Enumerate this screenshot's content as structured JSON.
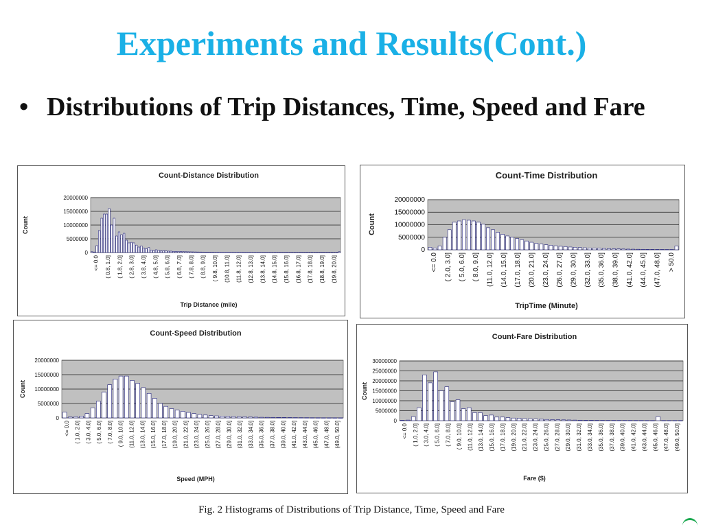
{
  "slide": {
    "title": "Experiments and Results(Cont.)",
    "bullet_symbol": "•",
    "bullet": "Distributions of Trip Distances, Time, Speed and Fare",
    "caption": "Fig. 2 Histograms of Distributions of Trip Distance, Time, Speed and Fare"
  },
  "colors": {
    "title": "#1ab0e6",
    "plot_bg": "#c0c0c0",
    "bar_fill": "#ffffff",
    "bar_stroke": "#1f1f7a",
    "accent_mark": "#1aa84f"
  },
  "chart_data": [
    {
      "type": "bar",
      "title": "Count-Distance Distribution",
      "xlabel": "Trip Distance (mile)",
      "ylabel": "Count",
      "ylim": [
        0,
        20000000
      ],
      "yticks": [
        "0",
        "5000000",
        "10000000",
        "15000000",
        "20000000"
      ],
      "tick_labels": [
        "<= 0.0",
        "( 0.8, 1.0]",
        "( 1.8, 2.0]",
        "( 2.8, 3.0]",
        "( 3.8, 4.0]",
        "( 4.8, 5.0]",
        "( 5.8, 6.0]",
        "( 6.8, 7.0]",
        "( 7.8, 8.0]",
        "( 8.8, 9.0]",
        "( 9.8, 10.0]",
        "(10.8, 11.0]",
        "(11.8, 12.0]",
        "(12.8, 13.0]",
        "(13.8, 14.0]",
        "(14.8, 15.0]",
        "(15.8, 16.0]",
        "(16.8, 17.0]",
        "(17.8, 18.0]",
        "(18.8, 19.0]",
        "(19.8, 20.0]"
      ],
      "values": [
        300000,
        200000,
        2500000,
        8000000,
        12500000,
        14000000,
        14000000,
        16000000,
        10000000,
        12500000,
        6000000,
        7500000,
        6500000,
        7000000,
        4500000,
        3500000,
        3700000,
        3500000,
        2700000,
        2000000,
        2400000,
        1600000,
        1400000,
        1800000,
        900000,
        700000,
        1000000,
        800000,
        600000,
        650000,
        600000,
        500000,
        500000,
        400000,
        400000,
        380000,
        360000,
        320000,
        300000,
        280000,
        260000,
        240000,
        220000,
        200000,
        190000,
        180000,
        170000,
        160000,
        150000,
        140000,
        130000,
        120000,
        110000,
        100000,
        95000,
        90000,
        85000,
        80000,
        75000,
        70000,
        65000,
        60000,
        55000,
        52000,
        50000,
        48000,
        45000,
        42000,
        40000,
        38000,
        36000,
        34000,
        32000,
        30000,
        28000,
        26000,
        25000,
        24000,
        23000,
        22000,
        21000,
        20000,
        19000,
        18000,
        17000,
        16000,
        15000,
        14000,
        13000,
        12000,
        11000,
        10000,
        9500,
        9000,
        8500,
        8000,
        7500,
        7000,
        6500,
        6000,
        300000
      ]
    },
    {
      "type": "bar",
      "title": "Count-Time Distribution",
      "xlabel": "TripTime (Minute)",
      "ylabel": "Count",
      "ylim": [
        0,
        20000000
      ],
      "yticks": [
        "0",
        "5000000",
        "10000000",
        "15000000",
        "20000000"
      ],
      "tick_labels": [
        "<= 0.0",
        "( 2.0, 3.0]",
        "( 5.0, 6.0]",
        "( 8.0, 9.0]",
        "(11.0, 12.0]",
        "(14.0, 15.0]",
        "(17.0, 18.0]",
        "(20.0, 21.0]",
        "(23.0, 24.0]",
        "(26.0, 27.0]",
        "(29.0, 30.0]",
        "(32.0, 33.0]",
        "(35.0, 36.0]",
        "(38.0, 39.0]",
        "(41.0, 42.0]",
        "(44.0, 45.0]",
        "(47.0, 48.0]",
        "> 50.0"
      ],
      "values": [
        1000000,
        700000,
        1500000,
        5000000,
        8000000,
        11000000,
        11500000,
        12000000,
        11800000,
        11500000,
        11000000,
        10200000,
        8800000,
        8000000,
        7000000,
        6200000,
        5500000,
        5000000,
        4500000,
        4000000,
        3500000,
        3000000,
        2600000,
        2300000,
        2000000,
        1800000,
        1600000,
        1400000,
        1300000,
        1100000,
        1000000,
        900000,
        800000,
        700000,
        650000,
        600000,
        520000,
        460000,
        400000,
        360000,
        320000,
        280000,
        250000,
        220000,
        200000,
        180000,
        160000,
        150000,
        140000,
        130000,
        120000,
        1500000
      ]
    },
    {
      "type": "bar",
      "title": "Count-Speed Distribution",
      "xlabel": "Speed (MPH)",
      "ylabel": "Count",
      "ylim": [
        0,
        20000000
      ],
      "yticks": [
        "0",
        "5000000",
        "10000000",
        "15000000",
        "20000000"
      ],
      "tick_labels": [
        "<= 0.0",
        "( 1.0, 2.0]",
        "( 3.0, 4.0]",
        "( 5.0, 6.0]",
        "( 7.0, 8.0]",
        "( 9.0, 10.0]",
        "(11.0, 12.0]",
        "(13.0, 14.0]",
        "(15.0, 16.0]",
        "(17.0, 18.0]",
        "(19.0, 20.0]",
        "(21.0, 22.0]",
        "(23.0, 24.0]",
        "(25.0, 26.0]",
        "(27.0, 28.0]",
        "(29.0, 30.0]",
        "(31.0, 32.0]",
        "(33.0, 34.0]",
        "(35.0, 36.0]",
        "(37.0, 38.0]",
        "(39.0, 40.0]",
        "(41.0, 42.0]",
        "(43.0, 44.0]",
        "(45.0, 46.0]",
        "(47.0, 48.0]",
        "(49.0, 50.0]"
      ],
      "values": [
        2000000,
        300000,
        400000,
        600000,
        1500000,
        3500000,
        5800000,
        9000000,
        11500000,
        13500000,
        14500000,
        14500000,
        13000000,
        12000000,
        10500000,
        8500000,
        6800000,
        5000000,
        4000000,
        3200000,
        2700000,
        2300000,
        1900000,
        1500000,
        1200000,
        1000000,
        800000,
        700000,
        600000,
        500000,
        450000,
        400000,
        350000,
        300000,
        260000,
        220000,
        200000,
        180000,
        160000,
        140000,
        120000,
        100000,
        90000,
        80000,
        70000,
        60000,
        55000,
        50000,
        45000,
        40000
      ]
    },
    {
      "type": "bar",
      "title": "Count-Fare Distribution",
      "xlabel": "Fare ($)",
      "ylabel": "Count",
      "ylim": [
        0,
        30000000
      ],
      "yticks": [
        "0",
        "5000000",
        "10000000",
        "15000000",
        "20000000",
        "25000000",
        "30000000"
      ],
      "tick_labels": [
        "<= 0.0",
        "( 1.0, 2.0]",
        "( 3.0, 4.0]",
        "( 5.0, 6.0]",
        "( 7.0, 8.0]",
        "( 9.0, 10.0]",
        "(11.0, 12.0]",
        "(13.0, 14.0]",
        "(15.0, 16.0]",
        "(17.0, 18.0]",
        "(19.0, 20.0]",
        "(21.0, 22.0]",
        "(23.0, 24.0]",
        "(25.0, 26.0]",
        "(27.0, 28.0]",
        "(29.0, 30.0]",
        "(31.0, 32.0]",
        "(33.0, 34.0]",
        "(35.0, 36.0]",
        "(37.0, 38.0]",
        "(39.0, 40.0]",
        "(41.0, 42.0]",
        "(43.0, 44.0]",
        "(45.0, 46.0]",
        "(47.0, 48.0]",
        "(49.0, 50.0]"
      ],
      "values": [
        200000,
        300000,
        2000000,
        6500000,
        23000000,
        19000000,
        24500000,
        15000000,
        17000000,
        9500000,
        10500000,
        6000000,
        6500000,
        4000000,
        4000000,
        2500000,
        2800000,
        1800000,
        1800000,
        1500000,
        1300000,
        1200000,
        1000000,
        900000,
        800000,
        700000,
        600000,
        500000,
        450000,
        400000,
        350000,
        300000,
        250000,
        220000,
        200000,
        180000,
        160000,
        150000,
        140000,
        130000,
        120000,
        110000,
        100000,
        90000,
        80000,
        75000,
        2000000,
        70000,
        65000,
        60000,
        55000
      ]
    }
  ]
}
